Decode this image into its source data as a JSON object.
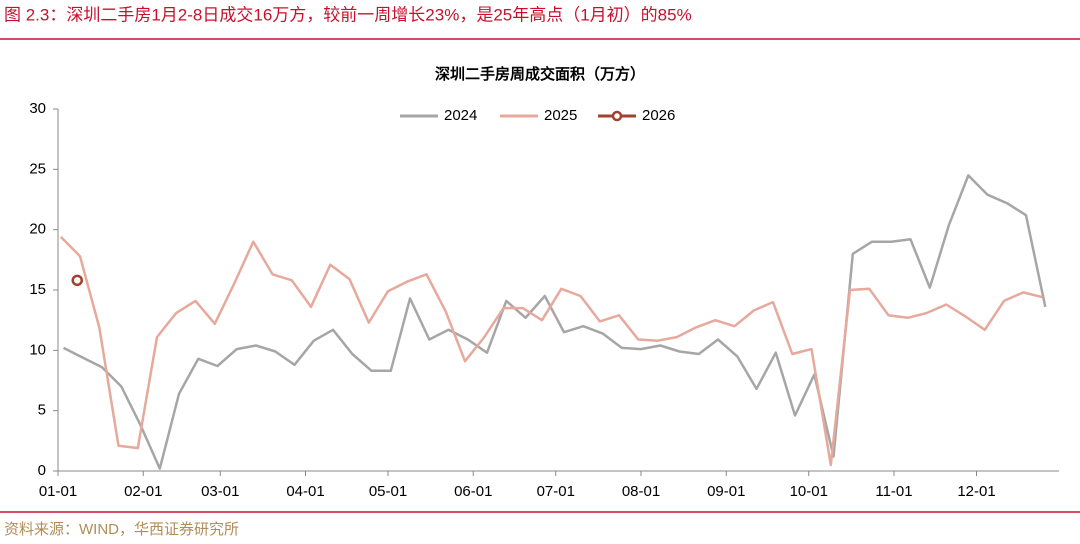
{
  "header": {
    "title": "图 2.3：深圳二手房1月2-8日成交16万方，较前一周增长23%，是25年高点（1月初）的85%"
  },
  "chart_data": {
    "type": "line",
    "title": "深圳二手房周成交面积（万方）",
    "xlim": [
      "01-01",
      "12-31"
    ],
    "xticks": [
      "01-01",
      "02-01",
      "03-01",
      "04-01",
      "05-01",
      "06-01",
      "07-01",
      "08-01",
      "09-01",
      "10-01",
      "11-01",
      "12-01"
    ],
    "ylim": [
      0,
      30
    ],
    "yticks": [
      0,
      5,
      10,
      15,
      20,
      25,
      30
    ],
    "legend": "top",
    "series": [
      {
        "name": "2024",
        "color": "#a6a6a6",
        "x": [
          "01-03",
          "01-10",
          "01-17",
          "01-24",
          "01-31",
          "02-07",
          "02-14",
          "02-21",
          "02-28",
          "03-07",
          "03-14",
          "03-21",
          "03-28",
          "04-04",
          "04-11",
          "04-18",
          "04-25",
          "05-02",
          "05-09",
          "05-16",
          "05-23",
          "05-30",
          "06-06",
          "06-13",
          "06-20",
          "06-27",
          "07-04",
          "07-11",
          "07-18",
          "07-25",
          "08-01",
          "08-08",
          "08-15",
          "08-22",
          "08-29",
          "09-05",
          "09-12",
          "09-19",
          "09-26",
          "10-03",
          "10-10",
          "10-17",
          "10-24",
          "10-31",
          "11-07",
          "11-14",
          "11-21",
          "11-28",
          "12-05",
          "12-12",
          "12-19",
          "12-26"
        ],
        "values": [
          10.2,
          9.4,
          8.6,
          7.0,
          3.8,
          0.2,
          6.4,
          9.3,
          8.7,
          10.1,
          10.4,
          9.9,
          8.8,
          10.8,
          11.7,
          9.7,
          8.3,
          8.3,
          14.3,
          10.9,
          11.7,
          10.9,
          9.8,
          14.1,
          12.7,
          14.5,
          11.5,
          12.0,
          11.4,
          10.2,
          10.1,
          10.4,
          9.9,
          9.7,
          10.9,
          9.5,
          6.8,
          9.8,
          4.6,
          8.0,
          1.2,
          18.0,
          19.0,
          19.0,
          19.2,
          15.2,
          20.4,
          24.5,
          22.9,
          22.2,
          21.2,
          13.6
        ]
      },
      {
        "name": "2025",
        "color": "#e6a99b",
        "x": [
          "01-02",
          "01-09",
          "01-16",
          "01-23",
          "01-30",
          "02-06",
          "02-13",
          "02-20",
          "02-27",
          "03-06",
          "03-13",
          "03-20",
          "03-27",
          "04-03",
          "04-10",
          "04-17",
          "04-24",
          "05-01",
          "05-08",
          "05-15",
          "05-22",
          "05-29",
          "06-05",
          "06-12",
          "06-19",
          "06-26",
          "07-03",
          "07-10",
          "07-17",
          "07-24",
          "07-31",
          "08-07",
          "08-14",
          "08-21",
          "08-28",
          "09-04",
          "09-11",
          "09-18",
          "09-25",
          "10-02",
          "10-09",
          "10-16",
          "10-23",
          "10-30",
          "11-06",
          "11-13",
          "11-20",
          "11-27",
          "12-04",
          "12-11",
          "12-18",
          "12-25"
        ],
        "values": [
          19.4,
          17.8,
          11.9,
          2.1,
          1.9,
          11.1,
          13.1,
          14.1,
          12.2,
          15.5,
          19.0,
          16.3,
          15.8,
          13.6,
          17.1,
          15.9,
          12.3,
          14.9,
          15.7,
          16.3,
          13.2,
          9.1,
          11.1,
          13.5,
          13.5,
          12.5,
          15.1,
          14.5,
          12.4,
          12.9,
          10.9,
          10.8,
          11.1,
          11.9,
          12.5,
          12.0,
          13.3,
          14.0,
          9.7,
          10.1,
          0.5,
          15.0,
          15.1,
          12.9,
          12.7,
          13.1,
          13.8,
          12.8,
          11.7,
          14.1,
          14.8,
          14.4
        ]
      },
      {
        "name": "2026",
        "color": "#a0422e",
        "marker": "circle",
        "x": [
          "01-08"
        ],
        "values": [
          15.8
        ]
      }
    ]
  },
  "footer": {
    "source": "资料来源：WIND，华西证券研究所"
  }
}
